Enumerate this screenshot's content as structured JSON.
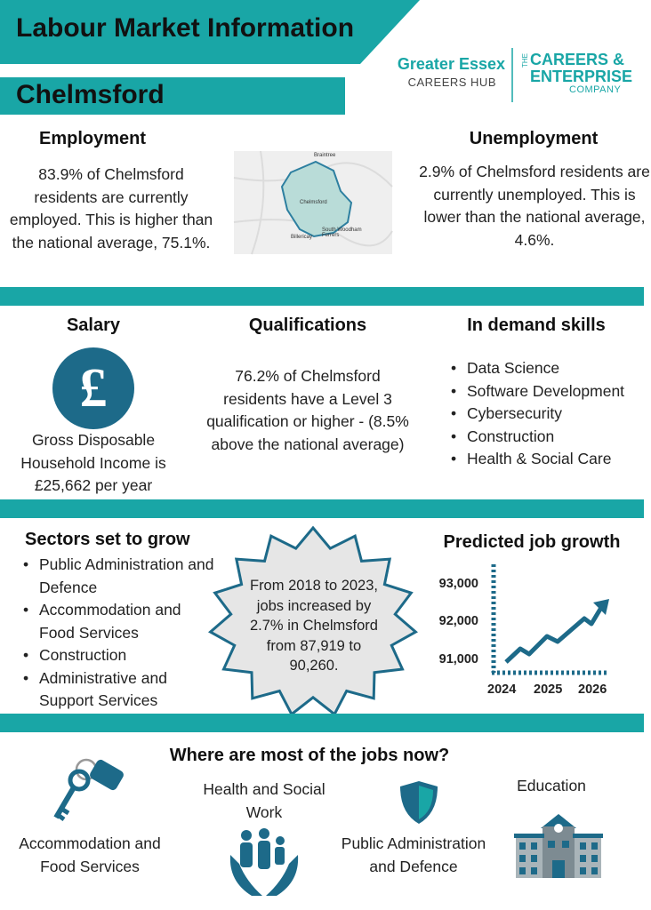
{
  "header": {
    "title": "Labour Market Information",
    "location": "Chelmsford",
    "logo_hub": {
      "name": "Greater Essex",
      "subtitle": "CAREERS HUB"
    },
    "logo_company": {
      "prefix": "THE",
      "line1": "CAREERS &",
      "line2": "ENTERPRISE",
      "line3": "COMPANY"
    }
  },
  "employment": {
    "heading": "Employment",
    "text": "83.9% of Chelmsford residents are currently employed. This is higher than the national average, 75.1%."
  },
  "map": {
    "labels": [
      "Braintree",
      "Chelmsford",
      "Billericay",
      "South Woodham Ferrers"
    ]
  },
  "unemployment": {
    "heading": "Unemployment",
    "text": "2.9% of Chelmsford residents are currently unemployed. This is lower than the national average, 4.6%."
  },
  "salary": {
    "heading": "Salary",
    "icon": "£",
    "text": "Gross Disposable Household Income is £25,662 per year"
  },
  "qualifications": {
    "heading": "Qualifications",
    "text": "76.2% of Chelmsford residents have a Level 3 qualification or higher - (8.5% above the national average)"
  },
  "skills": {
    "heading": "In demand skills",
    "items": [
      "Data Science",
      "Software Development",
      "Cybersecurity",
      "Construction",
      "Health & Social Care"
    ]
  },
  "sectors": {
    "heading": "Sectors set to grow",
    "items": [
      "Public Administration and Defence",
      "Accommodation and Food Services",
      "Construction",
      "Administrative and Support Services"
    ]
  },
  "highlight": {
    "text": "From 2018 to 2023, jobs increased by 2.7% in Chelmsford from 87,919 to 90,260."
  },
  "job_growth": {
    "heading": "Predicted job growth",
    "y_labels": [
      "93,000",
      "92,000",
      "91,000"
    ],
    "x_labels": [
      "2024",
      "2025",
      "2026"
    ]
  },
  "jobs_now": {
    "heading": "Where are most of the jobs now?",
    "items": [
      "Accommodation and Food Services",
      "Health and Social Work",
      "Public Administration and Defence",
      "Education"
    ]
  }
}
